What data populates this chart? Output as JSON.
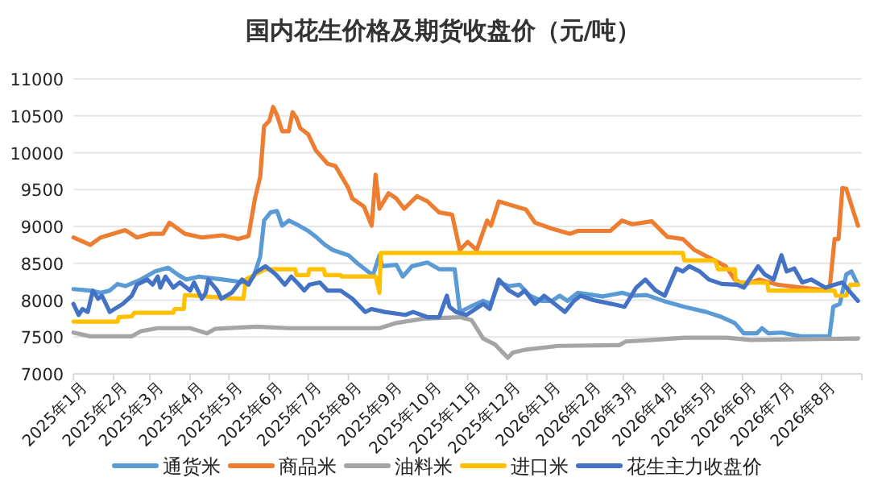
{
  "chart_data": {
    "type": "line",
    "title": "国内花生价格及期货收盘价（元/吨）",
    "xlim": [
      "2025-01",
      "2026-09"
    ],
    "ylim": [
      7000,
      11000
    ],
    "yticks": [
      7000,
      7500,
      8000,
      8500,
      9000,
      9500,
      10000,
      10500,
      11000
    ],
    "xticks": [
      {
        "value": "2025-01",
        "label": "2025年1月"
      },
      {
        "value": "2025-02",
        "label": "2025年2月"
      },
      {
        "value": "2025-03",
        "label": "2025年3月"
      },
      {
        "value": "2025-04",
        "label": "2025年4月"
      },
      {
        "value": "2025-05",
        "label": "2025年5月"
      },
      {
        "value": "2025-06",
        "label": "2025年6月"
      },
      {
        "value": "2025-07",
        "label": "2025年7月"
      },
      {
        "value": "2025-08",
        "label": "2025年8月"
      },
      {
        "value": "2025-09",
        "label": "2025年9月"
      },
      {
        "value": "2025-10",
        "label": "2025年10月"
      },
      {
        "value": "2025-11",
        "label": "2025年11月"
      },
      {
        "value": "2025-12",
        "label": "2025年12月"
      },
      {
        "value": "2026-01",
        "label": "2026年1月"
      },
      {
        "value": "2026-02",
        "label": "2026年2月"
      },
      {
        "value": "2026-03",
        "label": "2026年3月"
      },
      {
        "value": "2026-04",
        "label": "2026年4月"
      },
      {
        "value": "2026-05",
        "label": "2026年5月"
      },
      {
        "value": "2026-06",
        "label": "2026年6月"
      },
      {
        "value": "2026-07",
        "label": "2026年7月"
      },
      {
        "value": "2026-08",
        "label": "2026年8月"
      },
      {
        "value": "2026-09",
        "label": null
      }
    ],
    "grid": "y",
    "legend": "bottom",
    "marker": "none",
    "line_style": "solid",
    "series": [
      {
        "name": "通货米",
        "color": "#5b9bd5",
        "x": [
          "2025-01-01",
          "2025-01-14",
          "2025-01-22",
          "2025-01-29",
          "2025-02-04",
          "2025-02-10",
          "2025-02-22",
          "2025-03-01",
          "2025-03-05",
          "2025-03-11",
          "2025-03-15",
          "2025-03-23",
          "2025-03-29",
          "2025-04-08",
          "2025-04-26",
          "2025-05-13",
          "2025-05-20",
          "2025-05-25",
          "2025-05-28",
          "2025-06-02",
          "2025-06-07",
          "2025-06-11",
          "2025-06-16",
          "2025-06-22",
          "2025-07-01",
          "2025-07-07",
          "2025-07-14",
          "2025-07-20",
          "2025-08-01",
          "2025-08-08",
          "2025-08-16",
          "2025-08-20",
          "2025-08-25",
          "2025-08-27",
          "2025-09-07",
          "2025-09-12",
          "2025-09-19",
          "2025-10-01",
          "2025-10-10",
          "2025-10-22",
          "2025-10-26",
          "2025-11-03",
          "2025-11-13",
          "2025-11-19",
          "2025-11-25",
          "2025-12-03",
          "2025-12-11",
          "2025-12-19",
          "2025-12-28",
          "2026-01-05",
          "2026-01-11",
          "2026-01-17",
          "2026-01-25",
          "2026-02-13",
          "2026-02-28",
          "2026-03-08",
          "2026-03-19",
          "2026-04-01",
          "2026-04-17",
          "2026-05-04",
          "2026-05-16",
          "2026-05-26",
          "2026-06-02",
          "2026-06-12",
          "2026-06-16",
          "2026-06-21",
          "2026-07-01",
          "2026-07-16",
          "2026-08-07",
          "2026-08-10",
          "2026-08-15",
          "2026-08-20",
          "2026-08-24",
          "2026-08-29"
        ],
        "values": [
          8150,
          8130,
          8100,
          8130,
          8220,
          8190,
          8280,
          8350,
          8390,
          8420,
          8440,
          8340,
          8280,
          8320,
          8280,
          8240,
          8320,
          8590,
          9080,
          9190,
          9210,
          9010,
          9080,
          9030,
          8940,
          8860,
          8750,
          8680,
          8610,
          8500,
          8390,
          8340,
          8610,
          8460,
          8480,
          8320,
          8460,
          8510,
          8420,
          8420,
          7840,
          7910,
          7990,
          7950,
          8240,
          8190,
          8210,
          8060,
          7990,
          7990,
          8060,
          7990,
          8100,
          8050,
          8100,
          8060,
          8070,
          7990,
          7910,
          7840,
          7770,
          7690,
          7550,
          7550,
          7620,
          7550,
          7560,
          7510,
          7510,
          7910,
          7950,
          8350,
          8390,
          8210
        ]
      },
      {
        "name": "商品米",
        "color": "#ed7d31",
        "x": [
          "2025-01-01",
          "2025-01-14",
          "2025-01-22",
          "2025-02-10",
          "2025-02-19",
          "2025-03-01",
          "2025-03-11",
          "2025-03-16",
          "2025-03-28",
          "2025-04-10",
          "2025-04-26",
          "2025-05-08",
          "2025-05-16",
          "2025-05-21",
          "2025-05-25",
          "2025-05-28",
          "2025-06-01",
          "2025-06-04",
          "2025-06-07",
          "2025-06-11",
          "2025-06-16",
          "2025-06-19",
          "2025-06-22",
          "2025-06-25",
          "2025-07-01",
          "2025-07-07",
          "2025-07-16",
          "2025-07-22",
          "2025-07-26",
          "2025-08-01",
          "2025-08-04",
          "2025-08-13",
          "2025-08-19",
          "2025-08-22",
          "2025-08-25",
          "2025-09-01",
          "2025-09-07",
          "2025-09-13",
          "2025-09-23",
          "2025-10-01",
          "2025-10-10",
          "2025-10-20",
          "2025-10-26",
          "2025-11-01",
          "2025-11-08",
          "2025-11-16",
          "2025-11-19",
          "2025-11-25",
          "2025-12-08",
          "2025-12-16",
          "2025-12-23",
          "2026-01-05",
          "2026-01-19",
          "2026-01-25",
          "2026-02-19",
          "2026-02-28",
          "2026-03-08",
          "2026-03-23",
          "2026-04-04",
          "2026-04-16",
          "2026-04-25",
          "2026-05-07",
          "2026-05-19",
          "2026-05-26",
          "2026-06-02",
          "2026-06-14",
          "2026-06-28",
          "2026-07-16",
          "2026-08-07",
          "2026-08-11",
          "2026-08-14",
          "2026-08-17",
          "2026-08-20",
          "2026-08-25",
          "2026-08-29"
        ],
        "values": [
          8850,
          8750,
          8850,
          8950,
          8850,
          8900,
          8900,
          9050,
          8900,
          8850,
          8880,
          8830,
          8870,
          9380,
          9670,
          10360,
          10430,
          10620,
          10510,
          10290,
          10290,
          10550,
          10470,
          10330,
          10250,
          10030,
          9850,
          9820,
          9700,
          9520,
          9380,
          9270,
          9010,
          9700,
          9240,
          9450,
          9380,
          9240,
          9410,
          9340,
          9190,
          9160,
          8680,
          8790,
          8680,
          9080,
          9010,
          9340,
          9270,
          9230,
          9050,
          8970,
          8900,
          8940,
          8940,
          9080,
          9030,
          9070,
          8860,
          8830,
          8680,
          8570,
          8460,
          8280,
          8210,
          8280,
          8210,
          8170,
          8130,
          8830,
          8830,
          9520,
          9510,
          9230,
          9010
        ]
      },
      {
        "name": "油料米",
        "color": "#a5a5a5",
        "x": [
          "2025-01-01",
          "2025-01-14",
          "2025-02-15",
          "2025-02-22",
          "2025-03-07",
          "2025-04-01",
          "2025-04-14",
          "2025-04-20",
          "2025-05-22",
          "2025-06-16",
          "2025-08-25",
          "2025-09-07",
          "2025-09-28",
          "2025-10-26",
          "2025-11-04",
          "2025-11-13",
          "2025-11-22",
          "2025-12-02",
          "2025-12-06",
          "2025-12-16",
          "2026-01-10",
          "2026-02-26",
          "2026-03-03",
          "2026-03-23",
          "2026-04-17",
          "2026-05-20",
          "2026-06-07",
          "2026-08-29"
        ],
        "values": [
          7560,
          7510,
          7510,
          7580,
          7620,
          7620,
          7550,
          7610,
          7640,
          7620,
          7620,
          7690,
          7750,
          7770,
          7730,
          7480,
          7400,
          7220,
          7290,
          7330,
          7380,
          7390,
          7440,
          7460,
          7490,
          7490,
          7460,
          7480
        ]
      },
      {
        "name": "进口米",
        "color": "#ffc000",
        "x": [
          "2025-01-01",
          "2025-02-04",
          "2025-02-05",
          "2025-02-15",
          "2025-02-17",
          "2025-03-19",
          "2025-03-20",
          "2025-03-27",
          "2025-03-28",
          "2025-05-08",
          "2025-05-12",
          "2025-05-14",
          "2025-05-29",
          "2025-06-21",
          "2025-06-22",
          "2025-07-01",
          "2025-07-02",
          "2025-07-13",
          "2025-07-14",
          "2025-07-26",
          "2025-07-27",
          "2025-08-22",
          "2025-08-25",
          "2025-08-26",
          "2026-04-16",
          "2026-04-17",
          "2026-05-11",
          "2026-05-13",
          "2026-05-20",
          "2026-05-26",
          "2026-05-27",
          "2026-06-20",
          "2026-06-21",
          "2026-08-11",
          "2026-08-12",
          "2026-08-20",
          "2026-08-23",
          "2026-08-29"
        ],
        "values": [
          7710,
          7710,
          7770,
          7780,
          7830,
          7830,
          7880,
          7880,
          8070,
          8020,
          8020,
          8280,
          8420,
          8420,
          8340,
          8340,
          8420,
          8420,
          8340,
          8340,
          8320,
          8320,
          8100,
          8640,
          8640,
          8540,
          8540,
          8420,
          8420,
          8420,
          8240,
          8240,
          8130,
          8130,
          8060,
          8060,
          8210,
          8210
        ]
      },
      {
        "name": "花生主力收盘价",
        "color": "#4472c4",
        "x": [
          "2025-01-01",
          "2025-01-05",
          "2025-01-08",
          "2025-01-12",
          "2025-01-16",
          "2025-01-20",
          "2025-01-23",
          "2025-01-29",
          "2025-02-08",
          "2025-02-15",
          "2025-02-19",
          "2025-02-27",
          "2025-03-03",
          "2025-03-07",
          "2025-03-09",
          "2025-03-13",
          "2025-03-19",
          "2025-03-24",
          "2025-04-01",
          "2025-04-04",
          "2025-04-10",
          "2025-04-13",
          "2025-04-15",
          "2025-04-22",
          "2025-04-25",
          "2025-05-03",
          "2025-05-11",
          "2025-05-16",
          "2025-05-21",
          "2025-05-29",
          "2025-06-06",
          "2025-06-13",
          "2025-06-18",
          "2025-06-24",
          "2025-06-28",
          "2025-07-02",
          "2025-07-10",
          "2025-07-16",
          "2025-07-26",
          "2025-08-04",
          "2025-08-14",
          "2025-08-19",
          "2025-08-29",
          "2025-09-14",
          "2025-09-20",
          "2025-10-01",
          "2025-10-10",
          "2025-10-16",
          "2025-10-18",
          "2025-10-23",
          "2025-10-31",
          "2025-11-13",
          "2025-11-18",
          "2025-11-25",
          "2025-12-03",
          "2025-12-10",
          "2025-12-15",
          "2025-12-23",
          "2025-12-30",
          "2026-01-10",
          "2026-01-15",
          "2026-01-22",
          "2026-01-27",
          "2026-02-06",
          "2026-02-20",
          "2026-03-02",
          "2026-03-11",
          "2026-03-18",
          "2026-03-26",
          "2026-04-02",
          "2026-04-11",
          "2026-04-16",
          "2026-04-21",
          "2026-04-29",
          "2026-05-06",
          "2026-05-16",
          "2026-05-28",
          "2026-06-02",
          "2026-06-13",
          "2026-06-18",
          "2026-06-25",
          "2026-07-01",
          "2026-07-05",
          "2026-07-11",
          "2026-07-17",
          "2026-07-24",
          "2026-08-04",
          "2026-08-11",
          "2026-08-17",
          "2026-08-22",
          "2026-08-29"
        ],
        "values": [
          7950,
          7800,
          7880,
          7840,
          8130,
          8020,
          8060,
          7840,
          7950,
          8060,
          8210,
          8280,
          8210,
          8320,
          8170,
          8320,
          8170,
          8240,
          8130,
          8240,
          8020,
          8100,
          8280,
          8130,
          8020,
          8100,
          8280,
          8210,
          8370,
          8460,
          8350,
          8210,
          8320,
          8210,
          8130,
          8210,
          8240,
          8130,
          8130,
          8020,
          7840,
          7880,
          7840,
          7800,
          7840,
          7770,
          7770,
          8060,
          7910,
          7840,
          7800,
          7950,
          7880,
          8280,
          8130,
          8060,
          8130,
          7950,
          8060,
          7910,
          7840,
          7990,
          8060,
          8000,
          7950,
          7910,
          8170,
          8280,
          8130,
          8060,
          8430,
          8390,
          8460,
          8390,
          8280,
          8220,
          8210,
          8170,
          8460,
          8350,
          8280,
          8610,
          8390,
          8430,
          8240,
          8280,
          8170,
          8210,
          8240,
          8130,
          7990
        ]
      }
    ]
  }
}
